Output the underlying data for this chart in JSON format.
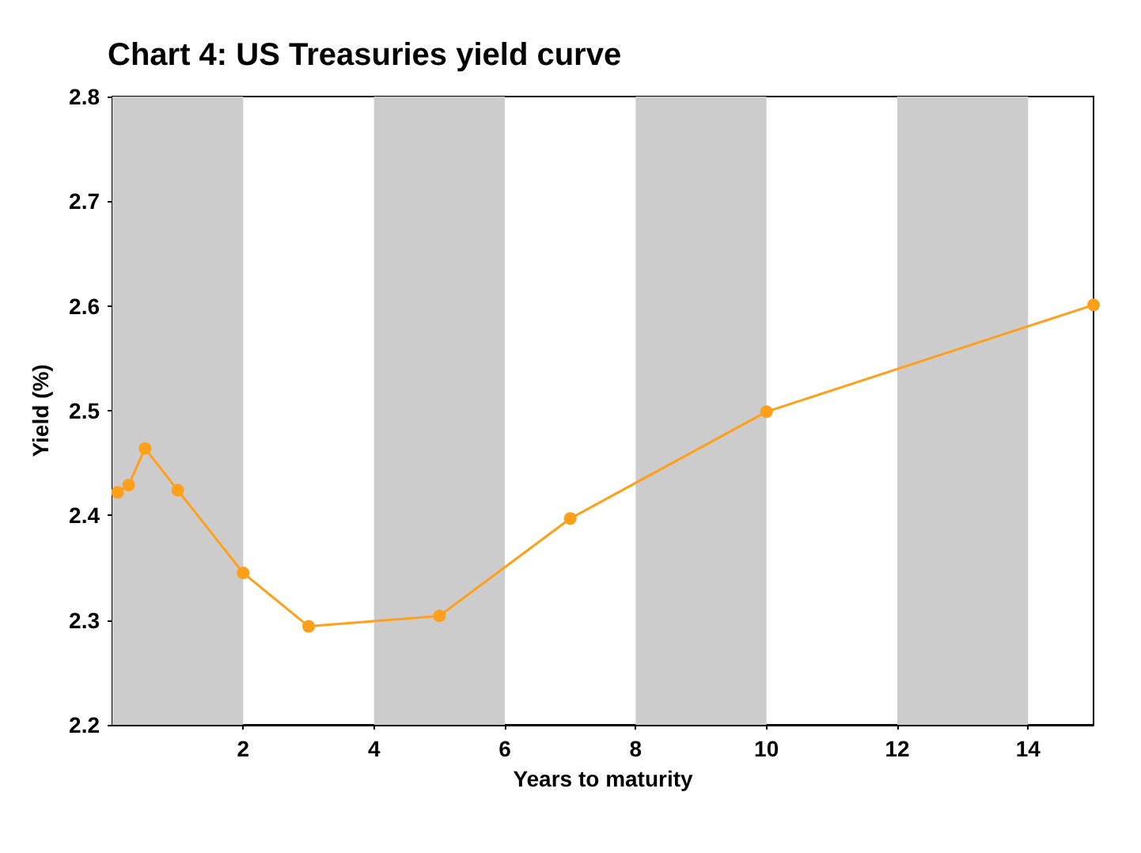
{
  "chart_data": {
    "type": "line",
    "title": "Chart 4: US Treasuries yield curve",
    "xlabel": "Years to maturity",
    "ylabel": "Yield (%)",
    "x": [
      0.08,
      0.25,
      0.5,
      1,
      2,
      3,
      5,
      7,
      10,
      15
    ],
    "series": [
      {
        "color": "#ff9f1a",
        "values": [
          2.422,
          2.429,
          2.464,
          2.424,
          2.345,
          2.294,
          2.304,
          2.397,
          2.499,
          2.601
        ]
      }
    ],
    "xlim": [
      0,
      15
    ],
    "xticks": [
      2,
      4,
      6,
      8,
      10,
      12,
      14
    ],
    "ylim": [
      2.2,
      2.8
    ],
    "yticks": [
      2.2,
      2.3,
      2.4,
      2.5,
      2.6,
      2.7,
      2.8
    ],
    "bands": [
      {
        "axis": "x",
        "from": 0,
        "to": 2,
        "color": "#cccccc"
      },
      {
        "axis": "x",
        "from": 4,
        "to": 6,
        "color": "#cccccc"
      },
      {
        "axis": "x",
        "from": 8,
        "to": 10,
        "color": "#cccccc"
      },
      {
        "axis": "x",
        "from": 12,
        "to": 14,
        "color": "#cccccc"
      }
    ],
    "marker": "circle",
    "line_style": "solid",
    "grid": false
  }
}
